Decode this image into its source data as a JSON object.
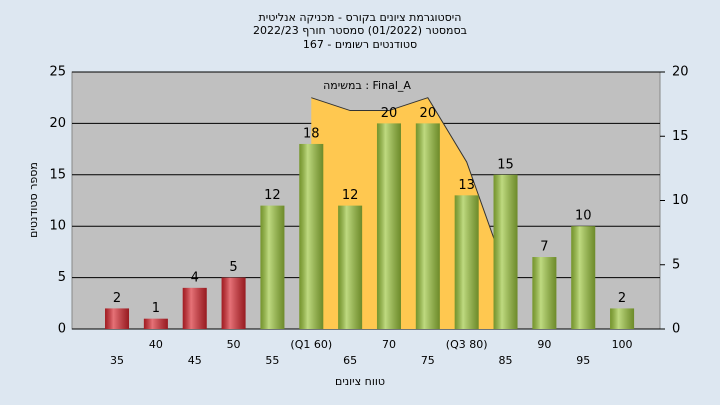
{
  "chart_data": {
    "type": "bar",
    "title": [
      "היסטוגרמת ציונים בקורס - מכניקה אנליטית",
      "בסמסטר  (01/2022)  סמסטר חורף 2022/23",
      "סטודנטים רשומים - 167"
    ],
    "annotation": "במשימה : Final_A",
    "x_label": "טווח ציונים",
    "y_label": "מספר סטודנטים",
    "categories": [
      "35",
      "40",
      "45",
      "50",
      "55",
      "(Q1 60)",
      "65",
      "70",
      "75",
      "(Q3 80)",
      "85",
      "90",
      "95",
      "100"
    ],
    "series": [
      {
        "type": "area",
        "axis": "y2",
        "color": "#ffc850",
        "values": [
          null,
          null,
          null,
          null,
          null,
          18,
          17,
          17,
          18,
          13,
          4.5,
          null,
          null,
          null
        ]
      },
      {
        "type": "bar",
        "colors": [
          "#d8262e",
          "#d8262e",
          "#d8262e",
          "#d8262e",
          "#9cc63c",
          "#9cc63c",
          "#9cc63c",
          "#9cc63c",
          "#9cc63c",
          "#9cc63c",
          "#9cc63c",
          "#9cc63c",
          "#9cc63c",
          "#9cc63c"
        ],
        "values": [
          2,
          1,
          4,
          5,
          12,
          18,
          12,
          20,
          20,
          13,
          15,
          7,
          10,
          2
        ]
      }
    ],
    "ylim": [
      0,
      25
    ],
    "yticks": [
      0,
      5,
      10,
      15,
      20,
      25
    ],
    "y2lim": [
      0,
      20
    ],
    "y2ticks": [
      0,
      5,
      10,
      15,
      20
    ],
    "grid": true
  }
}
